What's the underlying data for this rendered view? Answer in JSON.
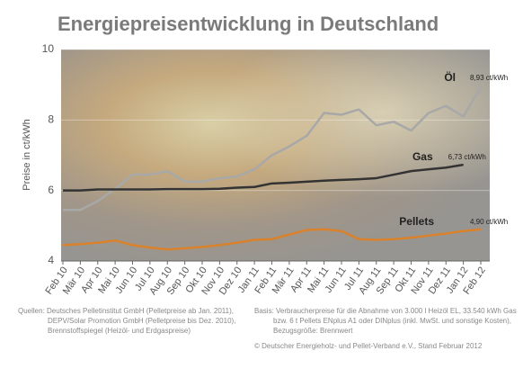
{
  "chart_data": {
    "type": "line",
    "title": "Energiepreisentwicklung in Deutschland",
    "y_label": "Preise in ct/kWh",
    "categories": [
      "Feb 10",
      "Mär 10",
      "Apr 10",
      "Mai 10",
      "Jun 10",
      "Jul 10",
      "Aug 10",
      "Sep 10",
      "Okt 10",
      "Nov 10",
      "Dez 10",
      "Jan 11",
      "Feb 11",
      "Mär 11",
      "Apr 11",
      "Mai 11",
      "Jun 11",
      "Jul 11",
      "Aug 11",
      "Sep 11",
      "Okt 11",
      "Nov 11",
      "Dez 11",
      "Jan 12",
      "Feb 12"
    ],
    "series": [
      {
        "name": "Öl",
        "color": "#a8a8a8",
        "values": [
          5.45,
          5.45,
          5.7,
          6.05,
          6.45,
          6.45,
          6.55,
          6.25,
          6.25,
          6.35,
          6.4,
          6.6,
          7.0,
          7.25,
          7.55,
          8.2,
          8.15,
          8.3,
          7.85,
          7.95,
          7.7,
          8.2,
          8.4,
          8.1,
          8.93
        ],
        "value_labels": [
          null,
          null,
          null,
          null,
          null,
          null,
          null,
          null,
          null,
          null,
          null,
          null,
          null,
          null,
          null,
          null,
          null,
          null,
          null,
          null,
          null,
          null,
          null,
          null,
          "8,93 ct/kWh"
        ]
      },
      {
        "name": "Gas",
        "color": "#333333",
        "values": [
          6.0,
          6.0,
          6.03,
          6.03,
          6.03,
          6.03,
          6.04,
          6.04,
          6.04,
          6.05,
          6.08,
          6.1,
          6.2,
          6.22,
          6.25,
          6.28,
          6.3,
          6.32,
          6.35,
          6.45,
          6.55,
          6.6,
          6.65,
          6.73,
          null
        ],
        "value_labels": [
          null,
          null,
          null,
          null,
          null,
          null,
          null,
          null,
          null,
          null,
          null,
          null,
          null,
          null,
          null,
          null,
          null,
          null,
          null,
          null,
          null,
          null,
          null,
          "6,73 ct/kWh",
          null
        ]
      },
      {
        "name": "Pellets",
        "color": "#d9822b",
        "values": [
          4.45,
          4.48,
          4.52,
          4.58,
          4.45,
          4.38,
          4.33,
          4.36,
          4.4,
          4.45,
          4.52,
          4.6,
          4.62,
          4.75,
          4.88,
          4.9,
          4.85,
          4.62,
          4.6,
          4.62,
          4.66,
          4.72,
          4.78,
          4.85,
          4.9
        ],
        "value_labels": [
          null,
          null,
          null,
          null,
          null,
          null,
          null,
          null,
          null,
          null,
          null,
          null,
          null,
          null,
          null,
          null,
          null,
          null,
          null,
          null,
          null,
          null,
          null,
          null,
          "4,90 ct/kWh"
        ]
      }
    ],
    "ylim": [
      4,
      10
    ],
    "yticks": [
      4,
      6,
      8,
      10
    ],
    "grid": true,
    "sources": [
      "Quellen: Deutsches Pelletinstitut GmbH (Pelletpreise ab Jan. 2011),",
      "DEPV/Solar Promotion GmbH (Pelletpreise bis Dez. 2010),",
      "Brennstoffspiegel (Heizöl- und Erdgaspreise)"
    ],
    "basis": [
      "Basis: Verbraucherpreise für die Abnahme von 3.000 l Heizöl EL, 33.540 kWh Gas",
      "bzw. 6 t Pellets ENplus A1 oder DINplus (inkl. MwSt. und sonstige Kosten),",
      "Bezugsgröße: Brennwert"
    ],
    "copyright": "© Deutscher Energieholz- und Pellet-Verband e.V., Stand Februar 2012"
  }
}
